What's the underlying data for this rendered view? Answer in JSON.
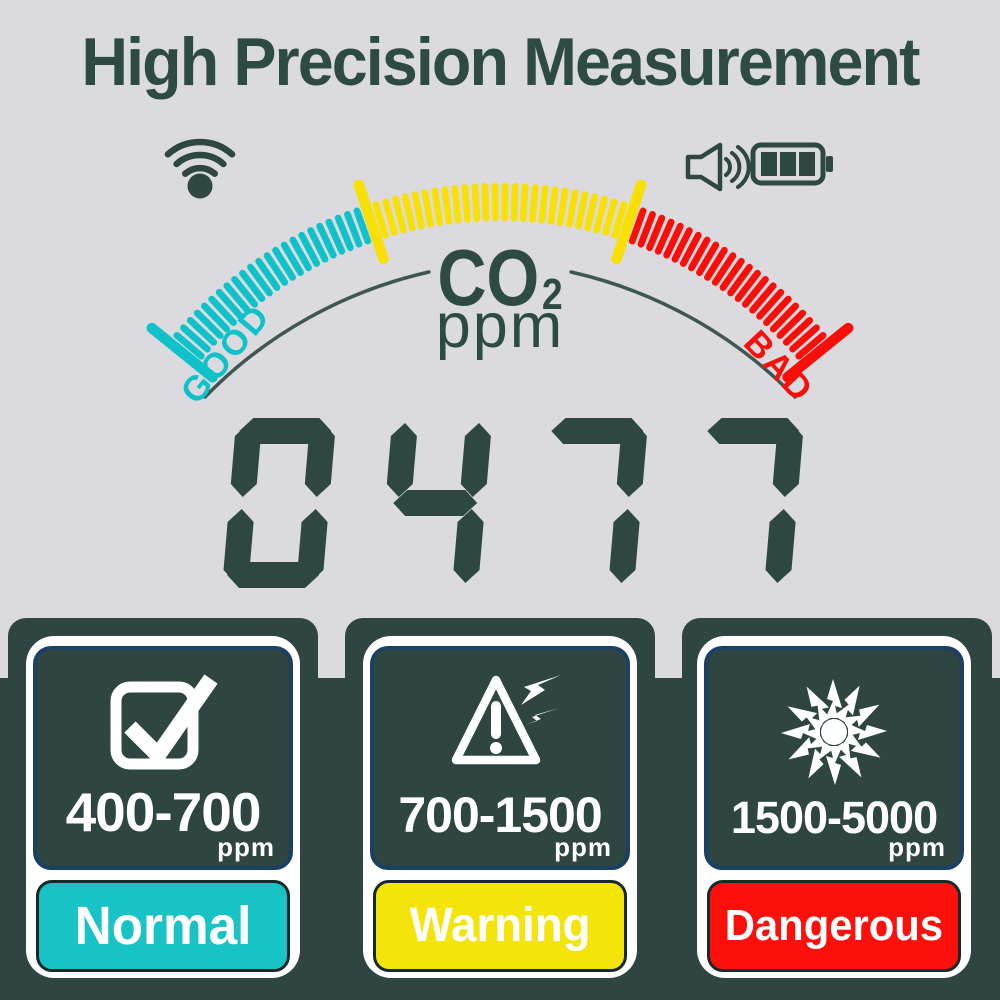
{
  "header": {
    "title": "High Precision Measurement"
  },
  "status_bar": {
    "icons": [
      {
        "name": "wifi"
      },
      {
        "name": "volume"
      },
      {
        "name": "battery",
        "level": "full",
        "bars": 3
      }
    ]
  },
  "gauge": {
    "gas": "CO",
    "gas_subscript": "2",
    "unit": "ppm",
    "left_label": "GOOD",
    "right_label": "BAD",
    "colors": {
      "good": "#0fc2c9",
      "warn": "#f8df04",
      "bad": "#f90f0a"
    },
    "ticks": {
      "start_angle": 141,
      "end_angle": 39,
      "count": 76,
      "good_end_index": 24,
      "warn_end_index": 51
    }
  },
  "display": {
    "value": "0477",
    "segment_color": "#2e4743"
  },
  "categories": [
    {
      "range": "400-700",
      "unit": "ppm",
      "label": "Normal",
      "icon": "checkbox-checked",
      "color": "#19c2c5"
    },
    {
      "range": "700-1500",
      "unit": "ppm",
      "label": "Warning",
      "icon": "warning-triangle",
      "color": "#f3e40b"
    },
    {
      "range": "1500-5000",
      "unit": "ppm",
      "label": "Dangerous",
      "icon": "hazard-burst",
      "color": "#fb100b"
    }
  ],
  "palette": {
    "background": "#dbdbdf",
    "panel_dark": "#2e4541",
    "text_dark": "#2e4a45",
    "card_border_navy": "#1c4063",
    "white": "#ffffff"
  }
}
